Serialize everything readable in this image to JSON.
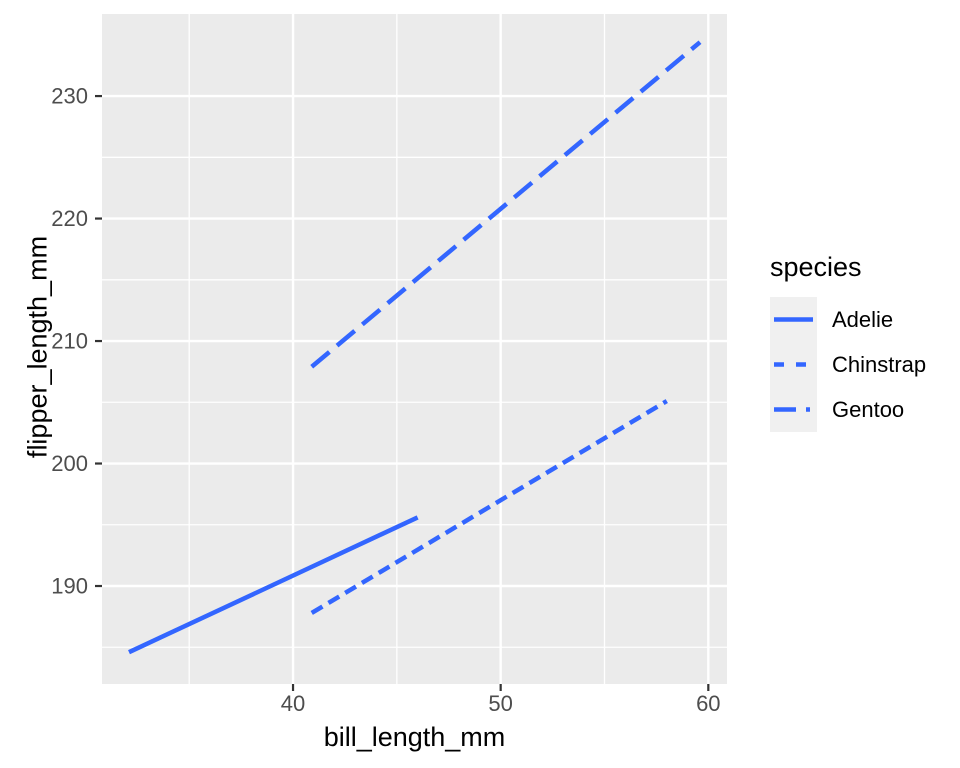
{
  "colors": {
    "background": "#FFFFFF",
    "panel_bg": "#EBEBEB",
    "gridline": "#FFFFFF",
    "line": "#3366FF",
    "tick_mark": "#333333",
    "tick_text": "#4D4D4D",
    "title_text": "#000000",
    "legend_key_bg": "#F0F0F0"
  },
  "chart_data": {
    "type": "line",
    "title": "",
    "xlabel": "bill_length_mm",
    "ylabel": "flipper_length_mm",
    "xlim": [
      30.8,
      60.9
    ],
    "ylim": [
      182.0,
      236.7
    ],
    "x_major_ticks": [
      40,
      50,
      60
    ],
    "x_minor_ticks": [
      35,
      45,
      55
    ],
    "y_major_ticks": [
      190,
      200,
      210,
      220,
      230
    ],
    "y_minor_ticks": [
      185,
      195,
      205,
      215,
      225
    ],
    "grid": "major-and-minor, white on gray panel",
    "legend": {
      "title": "species",
      "position": "right"
    },
    "series": [
      {
        "name": "Adelie",
        "linetype": "solid",
        "x": [
          32.1,
          46.0
        ],
        "y": [
          184.6,
          195.6
        ]
      },
      {
        "name": "Chinstrap",
        "linetype": "dashed",
        "x": [
          40.9,
          58.0
        ],
        "y": [
          187.8,
          205.1
        ]
      },
      {
        "name": "Gentoo",
        "linetype": "longdash",
        "x": [
          40.9,
          59.6
        ],
        "y": [
          207.9,
          234.4
        ]
      }
    ]
  }
}
